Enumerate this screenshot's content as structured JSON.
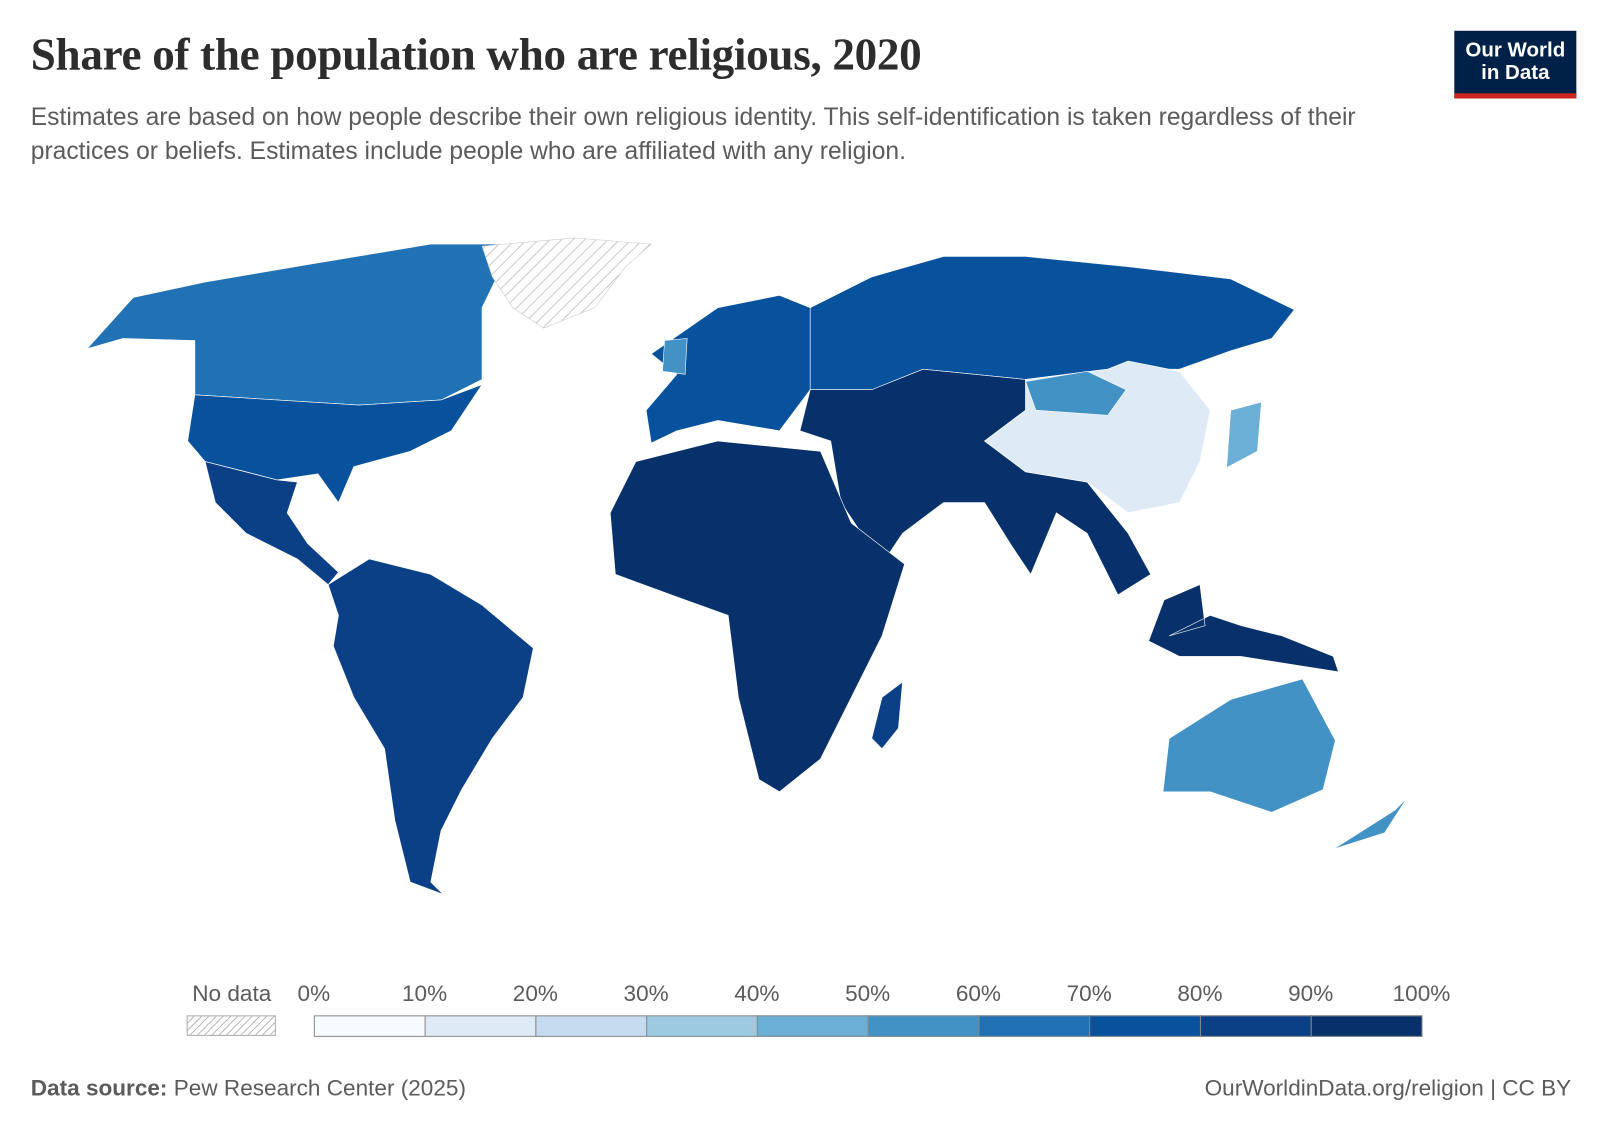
{
  "header": {
    "title": "Share of the population who are religious, 2020",
    "subtitle": "Estimates are based on how people describe their own religious identity. This self-identification is taken regardless of their practices or beliefs. Estimates include people who are affiliated with any religion.",
    "logo_text": "Our World in Data"
  },
  "legend": {
    "no_data_label": "No data",
    "ticks": [
      "0%",
      "10%",
      "20%",
      "30%",
      "40%",
      "50%",
      "60%",
      "70%",
      "80%",
      "90%",
      "100%"
    ],
    "bin_colors": [
      "#f7fbff",
      "#deebf7",
      "#c6dbef",
      "#9ecae1",
      "#6baed6",
      "#4292c6",
      "#2171b5",
      "#08519c",
      "#0b3f86",
      "#08306b"
    ]
  },
  "map_data": {
    "value_unit": "%",
    "regions": {
      "canada_alaska": 65,
      "usa": 75,
      "mexico_central_america": 85,
      "south_america": 88,
      "greenland": null,
      "europe": 72,
      "uk": 55,
      "russia": 75,
      "western_central_south_asia": 95,
      "china": 15,
      "mongolia": 55,
      "africa": 95,
      "madagascar": 85,
      "southeast_asia": 95,
      "japan": 40,
      "australia": 55,
      "new_zealand": 50
    }
  },
  "footer": {
    "source_label": "Data source:",
    "source": "Pew Research Center (2025)",
    "link": "OurWorldinData.org/religion | CC BY"
  }
}
